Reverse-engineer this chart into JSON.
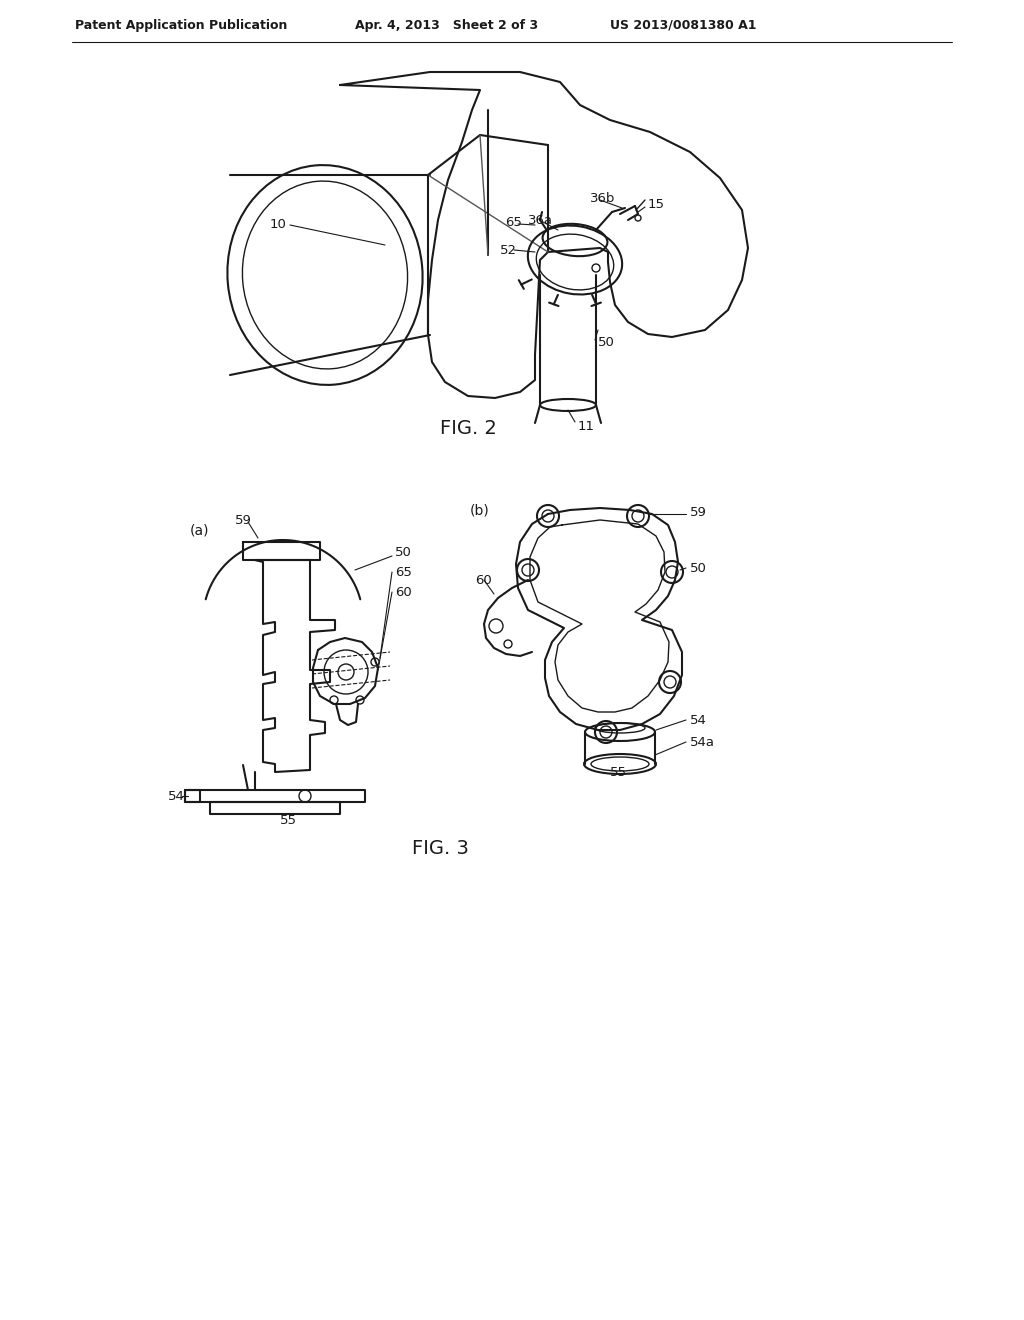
{
  "bg_color": "#ffffff",
  "header_left": "Patent Application Publication",
  "header_mid": "Apr. 4, 2013   Sheet 2 of 3",
  "header_right": "US 2013/0081380 A1",
  "line_color": "#1a1a1a",
  "text_color": "#1a1a1a"
}
